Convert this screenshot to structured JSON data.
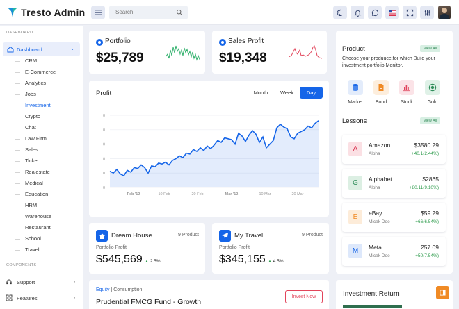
{
  "app": {
    "title": "Tresto Admin"
  },
  "search": {
    "placeholder": "Search"
  },
  "sidebar": {
    "section_dashboard": "DASHBOARD",
    "dashboard_label": "Dashboard",
    "items": [
      {
        "label": "CRM"
      },
      {
        "label": "E-Commerce"
      },
      {
        "label": "Analytics"
      },
      {
        "label": "Jobs"
      },
      {
        "label": "Investment"
      },
      {
        "label": "Crypto"
      },
      {
        "label": "Chat"
      },
      {
        "label": "Law Firm"
      },
      {
        "label": "Sales"
      },
      {
        "label": "Ticket"
      },
      {
        "label": "Realestate"
      },
      {
        "label": "Medical"
      },
      {
        "label": "Education"
      },
      {
        "label": "HRM"
      },
      {
        "label": "Warehouse"
      },
      {
        "label": "Restaurant"
      },
      {
        "label": "School"
      },
      {
        "label": "Travel"
      }
    ],
    "active_item": "Investment",
    "section_components": "COMPONENTS",
    "support_label": "Support",
    "features_label": "Features"
  },
  "portfolio": {
    "title": "Portfolio",
    "value": "$25,789"
  },
  "sales_profit": {
    "title": "Sales Profit",
    "value": "$19,348"
  },
  "profit": {
    "title": "Profit",
    "tabs": [
      "Month",
      "Week",
      "Day"
    ],
    "active_tab": "Day",
    "y_ticks": [
      "0",
      "0",
      "0",
      "0",
      "0",
      "0"
    ],
    "x_ticks": [
      "Feb '12",
      "10 Feb",
      "20 Feb",
      "Mar '12",
      "10 Mar",
      "20 Mar"
    ]
  },
  "chart_data": {
    "type": "area",
    "title": "Profit",
    "x_tick_labels": [
      "Feb '12",
      "10 Feb",
      "20 Feb",
      "Mar '12",
      "10 Mar",
      "20 Mar"
    ],
    "y_tick_labels": [
      "0",
      "0",
      "0",
      "0",
      "0",
      "0"
    ],
    "series": [
      {
        "values": [
          38,
          36,
          40,
          35,
          33,
          39,
          37,
          42,
          41,
          45,
          42,
          36,
          44,
          43,
          47,
          46,
          48,
          45,
          50,
          52,
          55,
          53,
          58,
          57,
          62,
          60,
          64,
          61,
          66,
          63,
          67,
          72,
          70,
          75,
          74,
          73,
          68,
          80,
          77,
          71,
          78,
          83,
          79,
          70,
          76,
          64,
          68,
          72,
          86,
          90,
          87,
          85,
          76,
          74,
          80,
          82,
          84,
          88,
          86,
          91,
          94
        ]
      }
    ],
    "color": "#1565e8",
    "grid": true
  },
  "dream_house": {
    "title": "Dream House",
    "count": "9 Product",
    "sub": "Portfolio Profit",
    "value": "$545,569",
    "change": "2.5%"
  },
  "my_travel": {
    "title": "My Travel",
    "count": "9 Product",
    "sub": "Portfolio Profit",
    "value": "$345,155",
    "change": "4.5%"
  },
  "fund": {
    "tag_equity": "Equity",
    "tag_sep": "|",
    "tag_consumption": "Consumption",
    "title": "Prudential FMCG Fund - Growth",
    "button": "Invest Now"
  },
  "product": {
    "title": "Product",
    "view_all": "View All",
    "description": "Choose your produuce,for which Build your investment portfolio Monitor.",
    "items": [
      {
        "label": "Market",
        "icon": "database-icon",
        "color": "#1565e8",
        "bg": "#e3ecfb"
      },
      {
        "label": "Bond",
        "icon": "document-icon",
        "color": "#f08a24",
        "bg": "#fdeedd"
      },
      {
        "label": "Stock",
        "icon": "bar-chart-icon",
        "color": "#e0445e",
        "bg": "#fbe3e7"
      },
      {
        "label": "Gold",
        "icon": "coin-icon",
        "color": "#2f8d5a",
        "bg": "#dff1e7"
      }
    ]
  },
  "lessons": {
    "title": "Lessons",
    "view_all": "View All",
    "items": [
      {
        "letter": "A",
        "name": "Amazon",
        "sub": "Alpha",
        "price": "$3580.29",
        "change": "+40.1(2.44%)",
        "bg": "#fbe0e4",
        "fg": "#d8324e"
      },
      {
        "letter": "G",
        "name": "Alphabet",
        "sub": "Alpha",
        "price": "$2865",
        "change": "+80.11(9.10%)",
        "bg": "#dcefe3",
        "fg": "#2f8d5a"
      },
      {
        "letter": "E",
        "name": "eBay",
        "sub": "Micak Doe",
        "price": "$59.29",
        "change": "+66(6.54%)",
        "bg": "#fdecd9",
        "fg": "#f08a24"
      },
      {
        "letter": "M",
        "name": "Meta",
        "sub": "Micak Doe",
        "price": "257.09",
        "change": "+50(7.54%)",
        "bg": "#dde8fb",
        "fg": "#1565e8"
      }
    ]
  },
  "investment_return": {
    "title": "Investment Return"
  },
  "colors": {
    "accent": "#1565e8",
    "positive": "#2b9a4a",
    "sparkline_green": "#2fb06b",
    "sparkline_red": "#e2455b",
    "page_bg": "#eef0f6"
  }
}
